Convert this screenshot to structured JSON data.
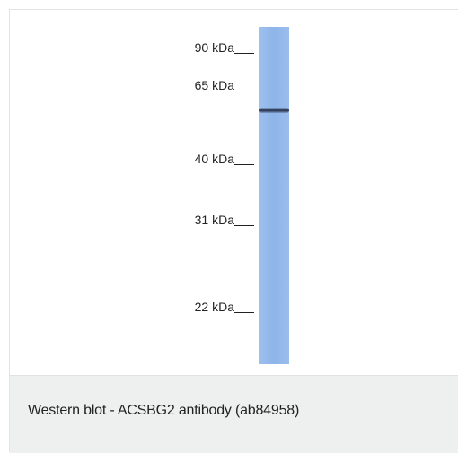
{
  "figure": {
    "markers": [
      {
        "label": "90 kDa"
      },
      {
        "label": "65 kDa"
      },
      {
        "label": "40 kDa"
      },
      {
        "label": "31 kDa"
      },
      {
        "label": "22 kDa"
      }
    ],
    "lane_color": "#93b8eb",
    "band_color": "#2c3851"
  },
  "caption": {
    "text": "Western blot - ACSBG2 antibody (ab84958)"
  }
}
